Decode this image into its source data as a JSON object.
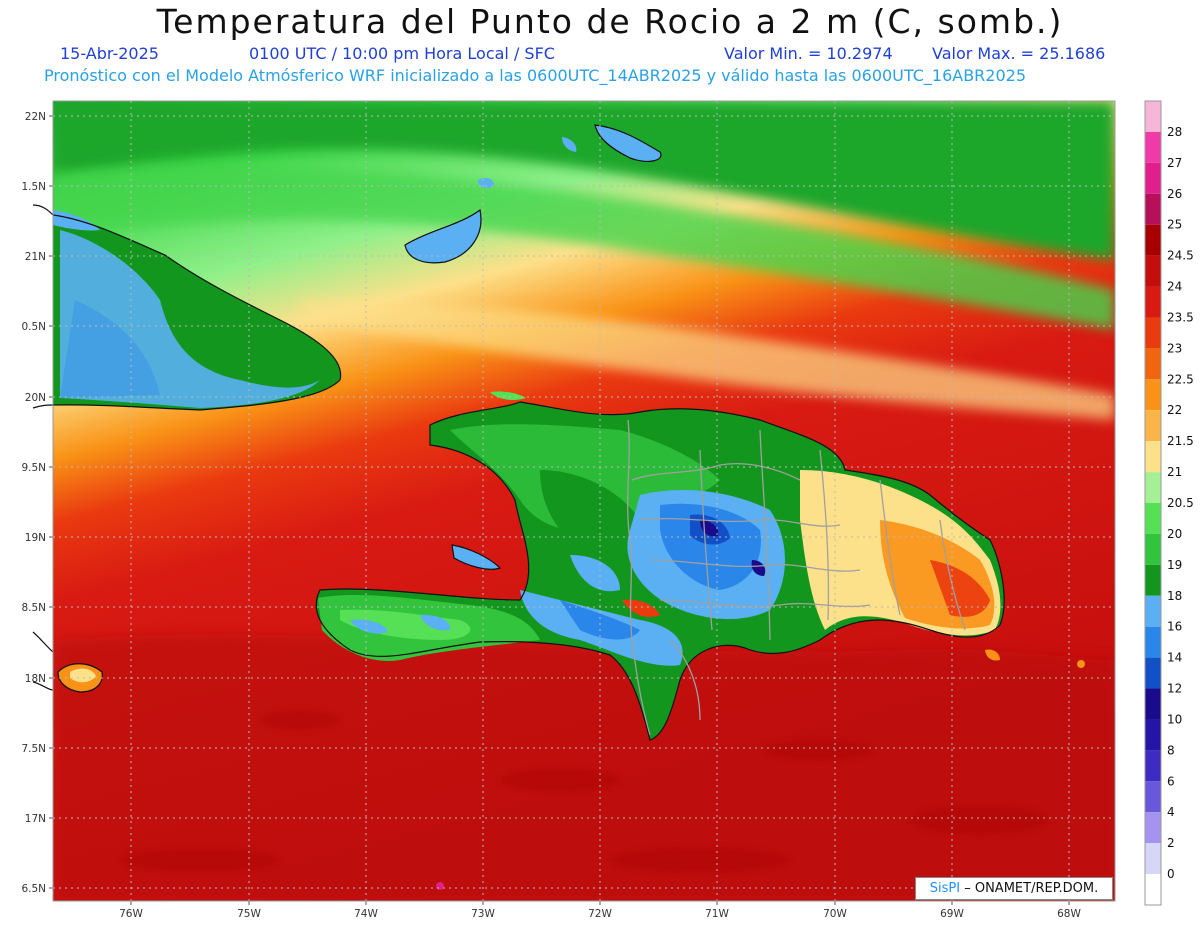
{
  "header": {
    "title": "Temperatura del Punto de Rocio a 2 m (C, somb.)",
    "date": "15-Abr-2025",
    "time": "0100 UTC / 10:00 pm Hora Local / SFC",
    "min_value": "Valor Min. = 10.2974",
    "max_value": "Valor Max. = 25.1686",
    "model_line": "Pronóstico con el Modelo Atmósferico WRF inicializado a las 0600UTC_14ABR2025 y válido hasta las  0600UTC_16ABR2025"
  },
  "axes": {
    "lat_labels": [
      "22N",
      "1.5N",
      "21N",
      "0.5N",
      "20N",
      "9.5N",
      "19N",
      "8.5N",
      "18N",
      "7.5N",
      "17N",
      "6.5N"
    ],
    "lon_labels": [
      "76W",
      "75W",
      "74W",
      "73W",
      "72W",
      "71W",
      "70W",
      "69W",
      "68W"
    ]
  },
  "colorbar": {
    "levels": [
      {
        "label": "28",
        "color": "#f5b6d8"
      },
      {
        "label": "27",
        "color": "#f03aa8"
      },
      {
        "label": "26",
        "color": "#e01e8c"
      },
      {
        "label": "25",
        "color": "#b80f5a"
      },
      {
        "label": "24.5",
        "color": "#a80000"
      },
      {
        "label": "24",
        "color": "#c40d0d"
      },
      {
        "label": "23.5",
        "color": "#d81a12"
      },
      {
        "label": "23",
        "color": "#ea3a10"
      },
      {
        "label": "22.5",
        "color": "#f2650f"
      },
      {
        "label": "22",
        "color": "#f99216"
      },
      {
        "label": "21.5",
        "color": "#fbb447"
      },
      {
        "label": "21",
        "color": "#fde08a"
      },
      {
        "label": "20.5",
        "color": "#a5f096"
      },
      {
        "label": "20",
        "color": "#55e055"
      },
      {
        "label": "19",
        "color": "#33c43e"
      },
      {
        "label": "18",
        "color": "#12961e"
      },
      {
        "label": "16",
        "color": "#5ab0f2"
      },
      {
        "label": "14",
        "color": "#2b86ea"
      },
      {
        "label": "12",
        "color": "#1250c8"
      },
      {
        "label": "10",
        "color": "#1a0a8c"
      },
      {
        "label": "8",
        "color": "#2414a8"
      },
      {
        "label": "6",
        "color": "#3e2cc2"
      },
      {
        "label": "4",
        "color": "#6a58dc"
      },
      {
        "label": "2",
        "color": "#a494f0"
      },
      {
        "label": "0",
        "color": "#d6d6f6"
      },
      {
        "label": "",
        "color": "#ffffff"
      }
    ]
  },
  "credit": {
    "brand": "SisPI",
    "org": " – ONAMET/REP.DOM."
  }
}
